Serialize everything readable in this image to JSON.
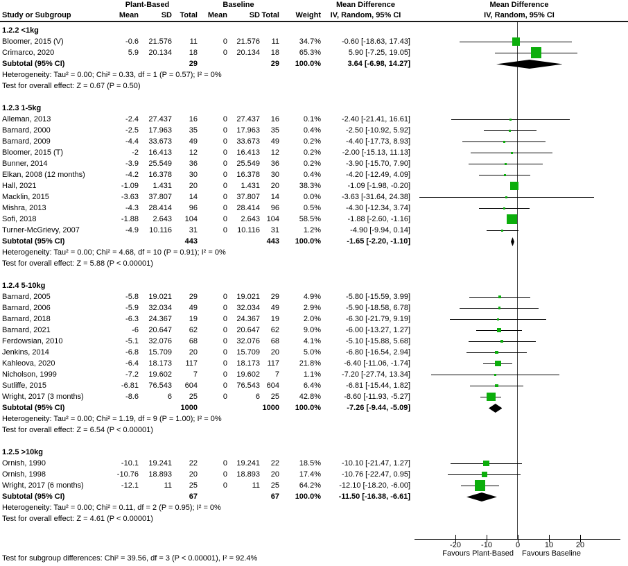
{
  "header": {
    "plant_based": "Plant-Based",
    "baseline": "Baseline",
    "mean_difference": "Mean Difference",
    "study_or_subgroup": "Study or Subgroup",
    "mean": "Mean",
    "sd": "SD",
    "total": "Total",
    "weight": "Weight",
    "ci": "IV, Random, 95% CI"
  },
  "colors": {
    "square": "#0CAE0C",
    "diamond": "#000000",
    "ci_line": "#000000",
    "zero_line": "#404040"
  },
  "chart_data": {
    "type": "forest",
    "effect_measure": "Mean Difference",
    "model": "IV, Random, 95% CI",
    "x_ticks": [
      -20,
      -10,
      0,
      10,
      20
    ],
    "xlim": [
      -34,
      35
    ],
    "favours_left": "Favours Plant-Based",
    "favours_right": "Favours Baseline",
    "subgroup_test": "Test for subgroup differences: Chi² = 39.56, df = 3 (P < 0.00001), I² = 92.4%",
    "groups": [
      {
        "label": "1.2.2 <1kg",
        "studies": [
          {
            "study": "Bloomer, 2015 (V)",
            "pb_mean": "-0.6",
            "pb_sd": "21.576",
            "pb_total": "11",
            "bl_mean": "0",
            "bl_sd": "21.576",
            "bl_total": "11",
            "weight": "34.7%",
            "weight_pct": 34.7,
            "ci_text": "-0.60 [-18.63, 17.43]",
            "est": -0.6,
            "ci_low": -18.63,
            "ci_high": 17.43
          },
          {
            "study": "Crimarco, 2020",
            "pb_mean": "5.9",
            "pb_sd": "20.134",
            "pb_total": "18",
            "bl_mean": "0",
            "bl_sd": "20.134",
            "bl_total": "18",
            "weight": "65.3%",
            "weight_pct": 65.3,
            "ci_text": "5.90 [-7.25, 19.05]",
            "est": 5.9,
            "ci_low": -7.25,
            "ci_high": 19.05
          }
        ],
        "subtotal": {
          "label": "Subtotal (95% CI)",
          "pb_total": "29",
          "bl_total": "29",
          "weight": "100.0%",
          "ci_text": "3.64 [-6.98, 14.27]",
          "est": 3.64,
          "ci_low": -6.98,
          "ci_high": 14.27
        },
        "heterogeneity": "Heterogeneity: Tau² = 0.00; Chi² = 0.33, df = 1 (P = 0.57); I² = 0%",
        "overall_test": "Test for overall effect: Z = 0.67 (P = 0.50)"
      },
      {
        "label": "1.2.3 1-5kg",
        "studies": [
          {
            "study": "Alleman, 2013",
            "pb_mean": "-2.4",
            "pb_sd": "27.437",
            "pb_total": "16",
            "bl_mean": "0",
            "bl_sd": "27.437",
            "bl_total": "16",
            "weight": "0.1%",
            "weight_pct": 0.1,
            "ci_text": "-2.40 [-21.41, 16.61]",
            "est": -2.4,
            "ci_low": -21.41,
            "ci_high": 16.61
          },
          {
            "study": "Barnard, 2000",
            "pb_mean": "-2.5",
            "pb_sd": "17.963",
            "pb_total": "35",
            "bl_mean": "0",
            "bl_sd": "17.963",
            "bl_total": "35",
            "weight": "0.4%",
            "weight_pct": 0.4,
            "ci_text": "-2.50 [-10.92, 5.92]",
            "est": -2.5,
            "ci_low": -10.92,
            "ci_high": 5.92
          },
          {
            "study": "Barnard, 2009",
            "pb_mean": "-4.4",
            "pb_sd": "33.673",
            "pb_total": "49",
            "bl_mean": "0",
            "bl_sd": "33.673",
            "bl_total": "49",
            "weight": "0.2%",
            "weight_pct": 0.2,
            "ci_text": "-4.40 [-17.73, 8.93]",
            "est": -4.4,
            "ci_low": -17.73,
            "ci_high": 8.93
          },
          {
            "study": "Bloomer, 2015 (T)",
            "pb_mean": "-2",
            "pb_sd": "16.413",
            "pb_total": "12",
            "bl_mean": "0",
            "bl_sd": "16.413",
            "bl_total": "12",
            "weight": "0.2%",
            "weight_pct": 0.2,
            "ci_text": "-2.00 [-15.13, 11.13]",
            "est": -2,
            "ci_low": -15.13,
            "ci_high": 11.13
          },
          {
            "study": "Bunner, 2014",
            "pb_mean": "-3.9",
            "pb_sd": "25.549",
            "pb_total": "36",
            "bl_mean": "0",
            "bl_sd": "25.549",
            "bl_total": "36",
            "weight": "0.2%",
            "weight_pct": 0.2,
            "ci_text": "-3.90 [-15.70, 7.90]",
            "est": -3.9,
            "ci_low": -15.7,
            "ci_high": 7.9
          },
          {
            "study": "Elkan, 2008 (12 months)",
            "pb_mean": "-4.2",
            "pb_sd": "16.378",
            "pb_total": "30",
            "bl_mean": "0",
            "bl_sd": "16.378",
            "bl_total": "30",
            "weight": "0.4%",
            "weight_pct": 0.4,
            "ci_text": "-4.20 [-12.49, 4.09]",
            "est": -4.2,
            "ci_low": -12.49,
            "ci_high": 4.09
          },
          {
            "study": "Hall, 2021",
            "pb_mean": "-1.09",
            "pb_sd": "1.431",
            "pb_total": "20",
            "bl_mean": "0",
            "bl_sd": "1.431",
            "bl_total": "20",
            "weight": "38.3%",
            "weight_pct": 38.3,
            "ci_text": "-1.09 [-1.98, -0.20]",
            "est": -1.09,
            "ci_low": -1.98,
            "ci_high": -0.2
          },
          {
            "study": "Macklin, 2015",
            "pb_mean": "-3.63",
            "pb_sd": "37.807",
            "pb_total": "14",
            "bl_mean": "0",
            "bl_sd": "37.807",
            "bl_total": "14",
            "weight": "0.0%",
            "weight_pct": 0.0,
            "ci_text": "-3.63 [-31.64, 24.38]",
            "est": -3.63,
            "ci_low": -31.64,
            "ci_high": 24.38
          },
          {
            "study": "Mishra, 2013",
            "pb_mean": "-4.3",
            "pb_sd": "28.414",
            "pb_total": "96",
            "bl_mean": "0",
            "bl_sd": "28.414",
            "bl_total": "96",
            "weight": "0.5%",
            "weight_pct": 0.5,
            "ci_text": "-4.30 [-12.34, 3.74]",
            "est": -4.3,
            "ci_low": -12.34,
            "ci_high": 3.74
          },
          {
            "study": "Sofi, 2018",
            "pb_mean": "-1.88",
            "pb_sd": "2.643",
            "pb_total": "104",
            "bl_mean": "0",
            "bl_sd": "2.643",
            "bl_total": "104",
            "weight": "58.5%",
            "weight_pct": 58.5,
            "ci_text": "-1.88 [-2.60, -1.16]",
            "est": -1.88,
            "ci_low": -2.6,
            "ci_high": -1.16
          },
          {
            "study": "Turner-McGrievy, 2007",
            "pb_mean": "-4.9",
            "pb_sd": "10.116",
            "pb_total": "31",
            "bl_mean": "0",
            "bl_sd": "10.116",
            "bl_total": "31",
            "weight": "1.2%",
            "weight_pct": 1.2,
            "ci_text": "-4.90 [-9.94, 0.14]",
            "est": -4.9,
            "ci_low": -9.94,
            "ci_high": 0.14
          }
        ],
        "subtotal": {
          "label": "Subtotal (95% CI)",
          "pb_total": "443",
          "bl_total": "443",
          "weight": "100.0%",
          "ci_text": "-1.65 [-2.20, -1.10]",
          "est": -1.65,
          "ci_low": -2.2,
          "ci_high": -1.1
        },
        "heterogeneity": "Heterogeneity: Tau² = 0.00; Chi² = 4.68, df = 10 (P = 0.91); I² = 0%",
        "overall_test": "Test for overall effect: Z = 5.88 (P < 0.00001)"
      },
      {
        "label": "1.2.4 5-10kg",
        "studies": [
          {
            "study": "Barnard, 2005",
            "pb_mean": "-5.8",
            "pb_sd": "19.021",
            "pb_total": "29",
            "bl_mean": "0",
            "bl_sd": "19.021",
            "bl_total": "29",
            "weight": "4.9%",
            "weight_pct": 4.9,
            "ci_text": "-5.80 [-15.59, 3.99]",
            "est": -5.8,
            "ci_low": -15.59,
            "ci_high": 3.99
          },
          {
            "study": "Barnard, 2006",
            "pb_mean": "-5.9",
            "pb_sd": "32.034",
            "pb_total": "49",
            "bl_mean": "0",
            "bl_sd": "32.034",
            "bl_total": "49",
            "weight": "2.9%",
            "weight_pct": 2.9,
            "ci_text": "-5.90 [-18.58, 6.78]",
            "est": -5.9,
            "ci_low": -18.58,
            "ci_high": 6.78
          },
          {
            "study": "Barnard, 2018",
            "pb_mean": "-6.3",
            "pb_sd": "24.367",
            "pb_total": "19",
            "bl_mean": "0",
            "bl_sd": "24.367",
            "bl_total": "19",
            "weight": "2.0%",
            "weight_pct": 2.0,
            "ci_text": "-6.30 [-21.79, 9.19]",
            "est": -6.3,
            "ci_low": -21.79,
            "ci_high": 9.19
          },
          {
            "study": "Barnard, 2021",
            "pb_mean": "-6",
            "pb_sd": "20.647",
            "pb_total": "62",
            "bl_mean": "0",
            "bl_sd": "20.647",
            "bl_total": "62",
            "weight": "9.0%",
            "weight_pct": 9.0,
            "ci_text": "-6.00 [-13.27, 1.27]",
            "est": -6,
            "ci_low": -13.27,
            "ci_high": 1.27
          },
          {
            "study": "Ferdowsian, 2010",
            "pb_mean": "-5.1",
            "pb_sd": "32.076",
            "pb_total": "68",
            "bl_mean": "0",
            "bl_sd": "32.076",
            "bl_total": "68",
            "weight": "4.1%",
            "weight_pct": 4.1,
            "ci_text": "-5.10 [-15.88, 5.68]",
            "est": -5.1,
            "ci_low": -15.88,
            "ci_high": 5.68
          },
          {
            "study": "Jenkins, 2014",
            "pb_mean": "-6.8",
            "pb_sd": "15.709",
            "pb_total": "20",
            "bl_mean": "0",
            "bl_sd": "15.709",
            "bl_total": "20",
            "weight": "5.0%",
            "weight_pct": 5.0,
            "ci_text": "-6.80 [-16.54, 2.94]",
            "est": -6.8,
            "ci_low": -16.54,
            "ci_high": 2.94
          },
          {
            "study": "Kahleova, 2020",
            "pb_mean": "-6.4",
            "pb_sd": "18.173",
            "pb_total": "117",
            "bl_mean": "0",
            "bl_sd": "18.173",
            "bl_total": "117",
            "weight": "21.8%",
            "weight_pct": 21.8,
            "ci_text": "-6.40 [-11.06, -1.74]",
            "est": -6.4,
            "ci_low": -11.06,
            "ci_high": -1.74
          },
          {
            "study": "Nicholson, 1999",
            "pb_mean": "-7.2",
            "pb_sd": "19.602",
            "pb_total": "7",
            "bl_mean": "0",
            "bl_sd": "19.602",
            "bl_total": "7",
            "weight": "1.1%",
            "weight_pct": 1.1,
            "ci_text": "-7.20 [-27.74, 13.34]",
            "est": -7.2,
            "ci_low": -27.74,
            "ci_high": 13.34
          },
          {
            "study": "Sutliffe, 2015",
            "pb_mean": "-6.81",
            "pb_sd": "76.543",
            "pb_total": "604",
            "bl_mean": "0",
            "bl_sd": "76.543",
            "bl_total": "604",
            "weight": "6.4%",
            "weight_pct": 6.4,
            "ci_text": "-6.81 [-15.44, 1.82]",
            "est": -6.81,
            "ci_low": -15.44,
            "ci_high": 1.82
          },
          {
            "study": "Wright, 2017 (3 months)",
            "pb_mean": "-8.6",
            "pb_sd": "6",
            "pb_total": "25",
            "bl_mean": "0",
            "bl_sd": "6",
            "bl_total": "25",
            "weight": "42.8%",
            "weight_pct": 42.8,
            "ci_text": "-8.60 [-11.93, -5.27]",
            "est": -8.6,
            "ci_low": -11.93,
            "ci_high": -5.27
          }
        ],
        "subtotal": {
          "label": "Subtotal (95% CI)",
          "pb_total": "1000",
          "bl_total": "1000",
          "weight": "100.0%",
          "ci_text": "-7.26 [-9.44, -5.09]",
          "est": -7.26,
          "ci_low": -9.44,
          "ci_high": -5.09
        },
        "heterogeneity": "Heterogeneity: Tau² = 0.00; Chi² = 1.19, df = 9 (P = 1.00); I² = 0%",
        "overall_test": "Test for overall effect: Z = 6.54 (P < 0.00001)"
      },
      {
        "label": "1.2.5 >10kg",
        "studies": [
          {
            "study": "Ornish, 1990",
            "pb_mean": "-10.1",
            "pb_sd": "19.241",
            "pb_total": "22",
            "bl_mean": "0",
            "bl_sd": "19.241",
            "bl_total": "22",
            "weight": "18.5%",
            "weight_pct": 18.5,
            "ci_text": "-10.10 [-21.47, 1.27]",
            "est": -10.1,
            "ci_low": -21.47,
            "ci_high": 1.27
          },
          {
            "study": "Ornish, 1998",
            "pb_mean": "-10.76",
            "pb_sd": "18.893",
            "pb_total": "20",
            "bl_mean": "0",
            "bl_sd": "18.893",
            "bl_total": "20",
            "weight": "17.4%",
            "weight_pct": 17.4,
            "ci_text": "-10.76 [-22.47, 0.95]",
            "est": -10.76,
            "ci_low": -22.47,
            "ci_high": 0.95
          },
          {
            "study": "Wright, 2017 (6 months)",
            "pb_mean": "-12.1",
            "pb_sd": "11",
            "pb_total": "25",
            "bl_mean": "0",
            "bl_sd": "11",
            "bl_total": "25",
            "weight": "64.2%",
            "weight_pct": 64.2,
            "ci_text": "-12.10 [-18.20, -6.00]",
            "est": -12.1,
            "ci_low": -18.2,
            "ci_high": -6.0
          }
        ],
        "subtotal": {
          "label": "Subtotal (95% CI)",
          "pb_total": "67",
          "bl_total": "67",
          "weight": "100.0%",
          "ci_text": "-11.50 [-16.38, -6.61]",
          "est": -11.5,
          "ci_low": -16.38,
          "ci_high": -6.61
        },
        "heterogeneity": "Heterogeneity: Tau² = 0.00; Chi² = 0.11, df = 2 (P = 0.95); I² = 0%",
        "overall_test": "Test for overall effect: Z = 4.61 (P < 0.00001)"
      }
    ]
  }
}
